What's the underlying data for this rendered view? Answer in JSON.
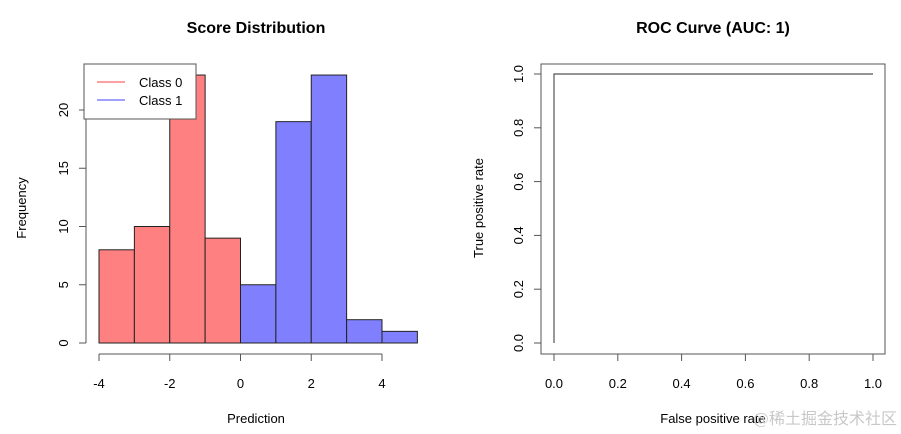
{
  "chart_data": [
    {
      "type": "bar",
      "subtype": "histogram",
      "title": "Score Distribution",
      "xlabel": "Prediction",
      "ylabel": "Frequency",
      "xlim": [
        -4,
        5
      ],
      "ylim": [
        0,
        23
      ],
      "xticks": [
        -4,
        -2,
        0,
        2,
        4
      ],
      "xtick_labels": [
        "-4",
        "-2",
        "0",
        "2",
        "4"
      ],
      "yticks": [
        0,
        5,
        10,
        15,
        20
      ],
      "ytick_labels": [
        "0",
        "5",
        "10",
        "15",
        "20"
      ],
      "grid": false,
      "legend": {
        "placement": "top-left",
        "entries": [
          {
            "label": "Class 0",
            "color": "#ff8080"
          },
          {
            "label": "Class 1",
            "color": "#8080ff"
          }
        ]
      },
      "series": [
        {
          "name": "Class 0",
          "color": "#ff8080",
          "bins": [
            {
              "from": -4,
              "to": -3,
              "count": 8
            },
            {
              "from": -3,
              "to": -2,
              "count": 10
            },
            {
              "from": -2,
              "to": -1,
              "count": 23
            },
            {
              "from": -1,
              "to": 0,
              "count": 9
            }
          ]
        },
        {
          "name": "Class 1",
          "color": "#8080ff",
          "bins": [
            {
              "from": 0,
              "to": 1,
              "count": 5
            },
            {
              "from": 1,
              "to": 2,
              "count": 19
            },
            {
              "from": 2,
              "to": 3,
              "count": 23
            },
            {
              "from": 3,
              "to": 4,
              "count": 2
            },
            {
              "from": 4,
              "to": 5,
              "count": 1
            }
          ]
        }
      ]
    },
    {
      "type": "line",
      "title": "ROC Curve (AUC: 1)",
      "xlabel": "False positive rate",
      "ylabel": "True positive rate",
      "xlim": [
        0,
        1
      ],
      "ylim": [
        0,
        1
      ],
      "xticks": [
        0,
        0.2,
        0.4,
        0.6,
        0.8,
        1.0
      ],
      "xtick_labels": [
        "0.0",
        "0.2",
        "0.4",
        "0.6",
        "0.8",
        "1.0"
      ],
      "yticks": [
        0,
        0.2,
        0.4,
        0.6,
        0.8,
        1.0
      ],
      "ytick_labels": [
        "0.0",
        "0.2",
        "0.4",
        "0.6",
        "0.8",
        "1.0"
      ],
      "grid": false,
      "series": [
        {
          "name": "ROC",
          "color": "#555555",
          "x": [
            0,
            0,
            1
          ],
          "y": [
            0,
            1,
            1
          ]
        }
      ]
    }
  ],
  "watermark": "@稀土掘金技术社区"
}
